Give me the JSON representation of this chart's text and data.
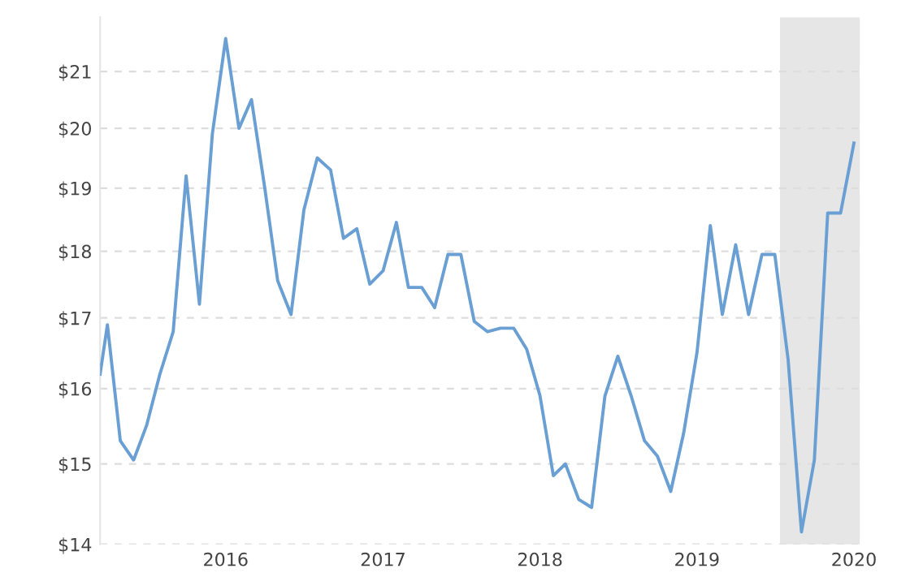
{
  "chart_data": {
    "type": "line",
    "log": "y",
    "grid": "y",
    "line_style": "solid",
    "marker": "none",
    "x": [
      "2015-03-15",
      "2015-04",
      "2015-05",
      "2015-06",
      "2015-07",
      "2015-08",
      "2015-09",
      "2015-10",
      "2015-11",
      "2015-12",
      "2016-01",
      "2016-02",
      "2016-03",
      "2016-04",
      "2016-05",
      "2016-06",
      "2016-07",
      "2016-08",
      "2016-09",
      "2016-10",
      "2016-11",
      "2016-12",
      "2017-01",
      "2017-02",
      "2017-03",
      "2017-04",
      "2017-05",
      "2017-06",
      "2017-07",
      "2017-08",
      "2017-09",
      "2017-10",
      "2017-11",
      "2017-12",
      "2018-01",
      "2018-02",
      "2018-03",
      "2018-04",
      "2018-05",
      "2018-06",
      "2018-07",
      "2018-08",
      "2018-09",
      "2018-10",
      "2018-11",
      "2018-12",
      "2019-01",
      "2019-02",
      "2019-03",
      "2019-04",
      "2019-05",
      "2019-06",
      "2019-07",
      "2019-08",
      "2019-09",
      "2019-10",
      "2019-11",
      "2019-12",
      "2020-01"
    ],
    "series": [
      {
        "color": "#6a9fd4",
        "values": [
          16.2,
          16.9,
          15.3,
          15.05,
          15.5,
          16.2,
          16.8,
          19.2,
          17.2,
          19.9,
          21.6,
          20.0,
          20.5,
          19.0,
          17.55,
          17.05,
          18.65,
          19.5,
          19.3,
          18.2,
          18.35,
          17.5,
          17.7,
          18.45,
          17.45,
          17.45,
          17.15,
          17.95,
          17.95,
          16.95,
          16.8,
          16.85,
          16.85,
          16.55,
          15.9,
          14.85,
          15.0,
          14.55,
          14.45,
          15.9,
          16.45,
          15.9,
          15.3,
          15.1,
          14.65,
          15.4,
          16.5,
          18.4,
          17.05,
          18.1,
          17.05,
          17.95,
          17.95,
          16.4,
          14.15,
          15.05,
          18.6,
          18.6,
          19.75
        ]
      }
    ],
    "xlim": [
      "2015-03-15",
      "2020-01-15"
    ],
    "xticks": [
      {
        "value": "2016-01-01",
        "label": "2016"
      },
      {
        "value": "2017-01-01",
        "label": "2017"
      },
      {
        "value": "2018-01-01",
        "label": "2018"
      },
      {
        "value": "2019-01-01",
        "label": "2019"
      },
      {
        "value": "2020-01-01",
        "label": "2020"
      }
    ],
    "ylim": [
      14,
      22
    ],
    "yticks": [
      {
        "value": 14,
        "label": "$14"
      },
      {
        "value": 15,
        "label": "$15"
      },
      {
        "value": 16,
        "label": "$16"
      },
      {
        "value": 17,
        "label": "$17"
      },
      {
        "value": 18,
        "label": "$18"
      },
      {
        "value": 19,
        "label": "$19"
      },
      {
        "value": 20,
        "label": "$20"
      },
      {
        "value": 21,
        "label": "$21"
      }
    ],
    "bands": [
      {
        "axis": "x",
        "from": "2019-07-13",
        "to": "2020-01-15",
        "color": "#e6e6e6"
      }
    ]
  }
}
